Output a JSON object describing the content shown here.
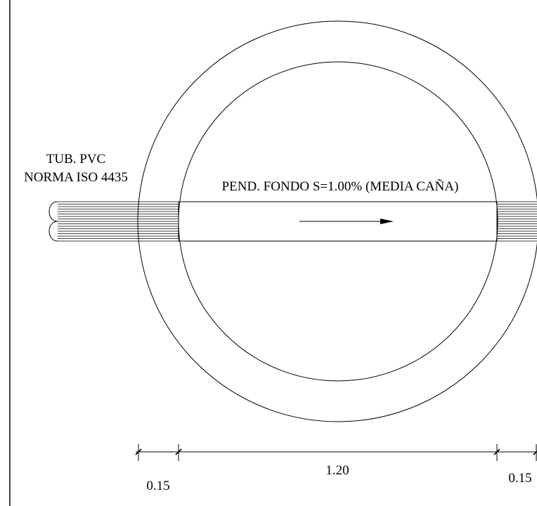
{
  "pipe_label": {
    "line1": "TUB. PVC",
    "line2": "NORMA ISO 4435"
  },
  "slope_label": "PEND. FONDO S=1.00% (MEDIA CAÑA)",
  "dimensions": {
    "left_wall": "0.15",
    "inner_diameter": "1.20",
    "right_wall": "0.15"
  },
  "colors": {
    "line": "#000000",
    "background": "#ffffff"
  }
}
